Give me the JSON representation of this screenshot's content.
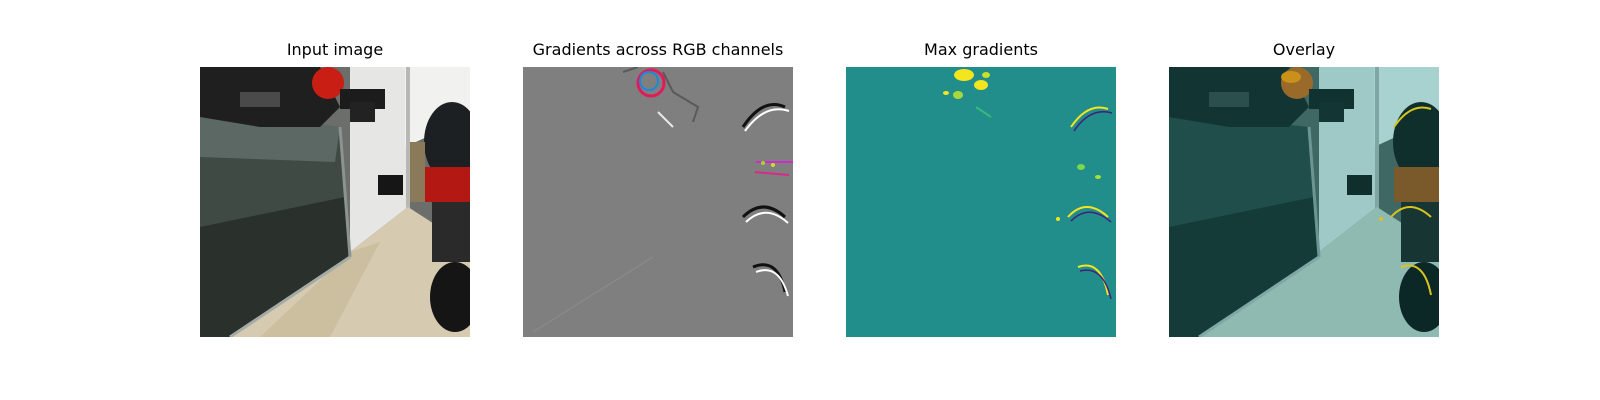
{
  "panels": [
    {
      "title": "Input image",
      "content": "input-photo"
    },
    {
      "title": "Gradients across RGB channels",
      "content": "rgb-gradients"
    },
    {
      "title": "Max gradients",
      "content": "max-gradient-map"
    },
    {
      "title": "Overlay",
      "content": "overlay"
    }
  ],
  "colors": {
    "background": "#ffffff",
    "gradient_bg": "#7f7f7f",
    "max_grad_bg": "#218e8b",
    "highlight": "#f5e51e",
    "robot_red": "#c81e14"
  }
}
